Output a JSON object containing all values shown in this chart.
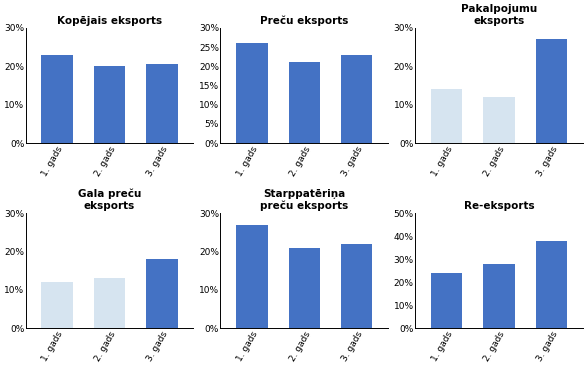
{
  "subplots": [
    {
      "title": "Kopējais eksports",
      "values": [
        23,
        20,
        20.5
      ],
      "colors": [
        "#4472c4",
        "#4472c4",
        "#4472c4"
      ],
      "ylim": [
        0,
        30
      ],
      "yticks": [
        0,
        10,
        20,
        30
      ],
      "ytick_labels": [
        "0%",
        "10%",
        "20%",
        "30%"
      ]
    },
    {
      "title": "Preču eksports",
      "values": [
        26,
        21,
        23
      ],
      "colors": [
        "#4472c4",
        "#4472c4",
        "#4472c4"
      ],
      "ylim": [
        0,
        30
      ],
      "yticks": [
        0,
        5,
        10,
        15,
        20,
        25,
        30
      ],
      "ytick_labels": [
        "0%",
        "5%",
        "10%",
        "15%",
        "20%",
        "25%",
        "30%"
      ]
    },
    {
      "title": "Pakalpojumu\neksports",
      "values": [
        14,
        12,
        27
      ],
      "colors": [
        "#d6e4f0",
        "#d6e4f0",
        "#4472c4"
      ],
      "ylim": [
        0,
        30
      ],
      "yticks": [
        0,
        10,
        20,
        30
      ],
      "ytick_labels": [
        "0%",
        "10%",
        "20%",
        "30%"
      ]
    },
    {
      "title": "Gala preču\neksports",
      "values": [
        12,
        13,
        18
      ],
      "colors": [
        "#d6e4f0",
        "#d6e4f0",
        "#4472c4"
      ],
      "ylim": [
        0,
        30
      ],
      "yticks": [
        0,
        10,
        20,
        30
      ],
      "ytick_labels": [
        "0%",
        "10%",
        "20%",
        "30%"
      ]
    },
    {
      "title": "Starppatēriņa\npreču eksports",
      "values": [
        27,
        21,
        22
      ],
      "colors": [
        "#4472c4",
        "#4472c4",
        "#4472c4"
      ],
      "ylim": [
        0,
        30
      ],
      "yticks": [
        0,
        10,
        20,
        30
      ],
      "ytick_labels": [
        "0%",
        "10%",
        "20%",
        "30%"
      ]
    },
    {
      "title": "Re-eksports",
      "values": [
        24,
        28,
        38
      ],
      "colors": [
        "#4472c4",
        "#4472c4",
        "#4472c4"
      ],
      "ylim": [
        0,
        50
      ],
      "yticks": [
        0,
        10,
        20,
        30,
        40,
        50
      ],
      "ytick_labels": [
        "0%",
        "10%",
        "20%",
        "30%",
        "40%",
        "50%"
      ]
    }
  ],
  "categories": [
    "1. gads",
    "2. gads",
    "3. gads"
  ],
  "bar_color_dark": "#4472c4",
  "bar_color_light": "#d6e4f0",
  "background_color": "#ffffff",
  "title_fontsize": 7.5,
  "tick_fontsize": 6.5
}
